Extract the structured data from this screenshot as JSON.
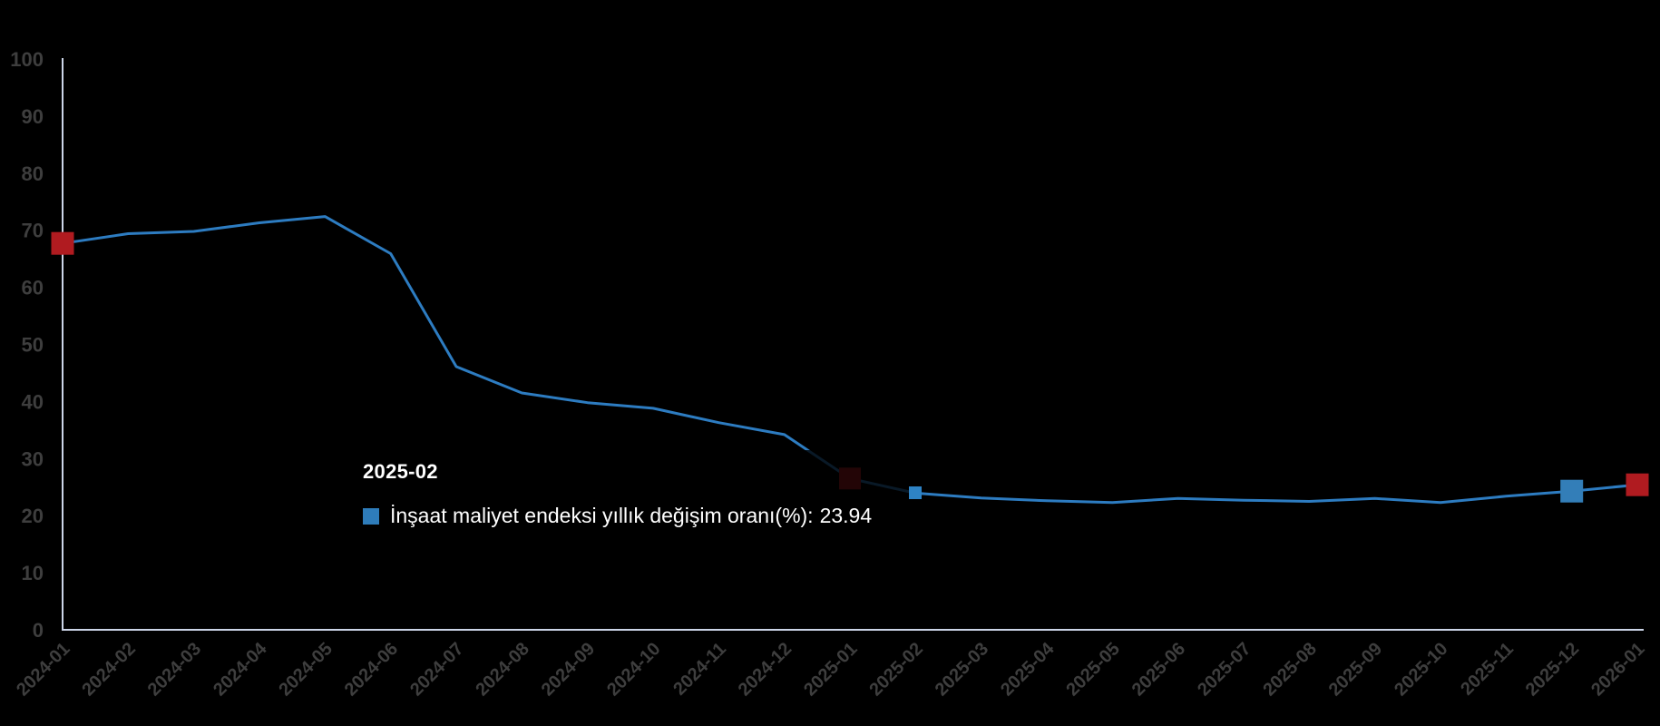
{
  "chart_data": {
    "type": "line",
    "title": "",
    "xlabel": "",
    "ylabel": "",
    "categories": [
      "2024-01",
      "2024-02",
      "2024-03",
      "2024-04",
      "2024-05",
      "2024-06",
      "2024-07",
      "2024-08",
      "2024-09",
      "2024-10",
      "2024-11",
      "2024-12",
      "2025-01",
      "2025-02",
      "2025-03",
      "2025-04",
      "2025-05",
      "2025-06",
      "2025-07",
      "2025-08",
      "2025-09",
      "2025-10",
      "2025-11",
      "2025-12",
      "2026-01"
    ],
    "series": [
      {
        "name": "İnşaat maliyet endeksi yıllık değişim oranı(%)",
        "color": "#2d7cc1",
        "values": [
          67.7,
          69.4,
          69.8,
          71.3,
          72.4,
          65.9,
          46.1,
          41.5,
          39.8,
          38.8,
          36.3,
          34.2,
          26.5,
          23.94,
          23.1,
          22.6,
          22.3,
          23.0,
          22.7,
          22.5,
          23.0,
          22.3,
          23.4,
          24.3,
          25.4
        ]
      }
    ],
    "ylim": [
      0,
      100
    ],
    "y_tick_interval": 10,
    "grid": false,
    "legend_position": "none",
    "background_color": "#000000",
    "axis_line_color": "#ccd5e8",
    "axis_label_color": "#3e3e3e",
    "point_markers": [
      {
        "category": "2024-01",
        "color": "#b01b20",
        "size": 25
      },
      {
        "category": "2025-01",
        "color": "#b01b20",
        "size": 24
      },
      {
        "category": "2025-12",
        "color": "#337eb8",
        "size": 25
      },
      {
        "category": "2026-01",
        "color": "#b01b20",
        "size": 25
      }
    ],
    "hover_point": {
      "category": "2025-02",
      "color": "#2e83c5",
      "size": 14
    }
  },
  "tooltip": {
    "header": "2025-02",
    "series_label": "İnşaat maliyet endeksi yıllık değişim oranı(%):",
    "value": "23.94",
    "swatch_color": "#2e7cba"
  }
}
